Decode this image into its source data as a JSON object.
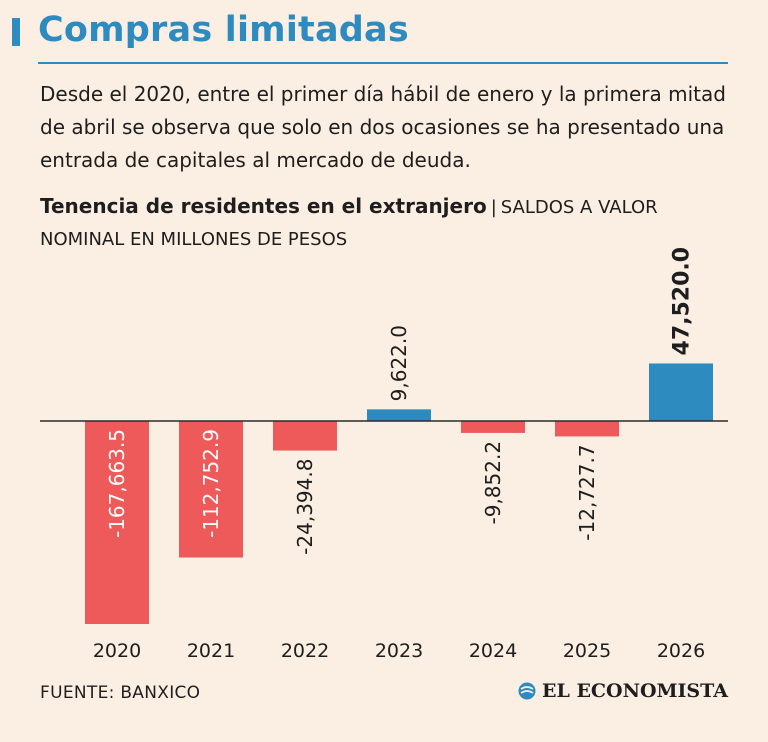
{
  "header": {
    "title": "Compras limitadas",
    "description": "Desde el 2020, entre el primer día hábil de enero y la primera mitad de abril se observa que solo en dos ocasiones se ha presentado una entrada de capitales al mercado de deuda."
  },
  "chart_heading": {
    "bold": "Tenencia de residentes en el extranjero",
    "separator": "|",
    "rest": "SALDOS A VALOR NOMINAL EN MILLONES DE PESOS"
  },
  "chart_data": {
    "type": "bar",
    "title": "Tenencia de residentes en el extranjero",
    "subtitle": "SALDOS A VALOR NOMINAL EN MILLONES DE PESOS",
    "categories": [
      "2020",
      "2021",
      "2022",
      "2023",
      "2024",
      "2025",
      "2026"
    ],
    "values": [
      -167663.5,
      -112752.9,
      -24394.8,
      9622.0,
      -9852.2,
      -12727.7,
      47520.0
    ],
    "labels": [
      "-167,663.5",
      "-112,752.9",
      "-24,394.8",
      "9,622.0",
      "-9,852.2",
      "-12,727.7",
      "47,520.0"
    ],
    "emphasized_index": 6,
    "colors": {
      "positive": "#2d8bc0",
      "negative": "#ee5a5a"
    },
    "grid": false,
    "legend": "none"
  },
  "footer": {
    "source": "FUENTE: BANXICO",
    "brand": "EL ECONOMISTA"
  }
}
